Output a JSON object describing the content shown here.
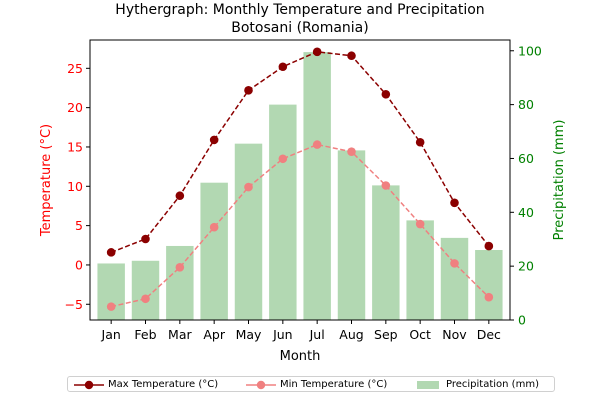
{
  "chart_data": {
    "type": "bar+line",
    "title": "Hythergraph: Monthly Temperature and Precipitation",
    "subtitle": "Botosani (Romania)",
    "xlabel": "Month",
    "ylabel_left": "Temperature (°C)",
    "ylabel_right": "Precipitation (mm)",
    "categories": [
      "Jan",
      "Feb",
      "Mar",
      "Apr",
      "May",
      "Jun",
      "Jul",
      "Aug",
      "Sep",
      "Oct",
      "Nov",
      "Dec"
    ],
    "ylim_left": [
      -7,
      28.6
    ],
    "ylim_right": [
      0,
      104
    ],
    "yticks_left": [
      -5,
      0,
      5,
      10,
      15,
      20,
      25
    ],
    "yticks_right": [
      0,
      20,
      40,
      60,
      80,
      100
    ],
    "grid": false,
    "legend_placement": "bottom-center",
    "series": [
      {
        "name": "Max Temperature (°C)",
        "axis": "left",
        "kind": "line",
        "color": "#8b0000",
        "values": [
          1.6,
          3.3,
          8.8,
          15.9,
          22.2,
          25.2,
          27.1,
          26.6,
          21.7,
          15.6,
          7.9,
          2.4
        ]
      },
      {
        "name": "Min Temperature (°C)",
        "axis": "left",
        "kind": "line",
        "color": "#f08080",
        "values": [
          -5.3,
          -4.3,
          -0.3,
          4.8,
          9.9,
          13.5,
          15.3,
          14.4,
          10.1,
          5.2,
          0.2,
          -4.1
        ]
      },
      {
        "name": "Precipitation (mm)",
        "axis": "right",
        "kind": "bar",
        "color": "#b2d8b2",
        "values": [
          21,
          22,
          27.5,
          51,
          65.5,
          80,
          99.5,
          63,
          50,
          37,
          30.5,
          26
        ]
      }
    ],
    "colors": {
      "left_axis": "#ff0000",
      "right_axis": "#008000"
    }
  }
}
